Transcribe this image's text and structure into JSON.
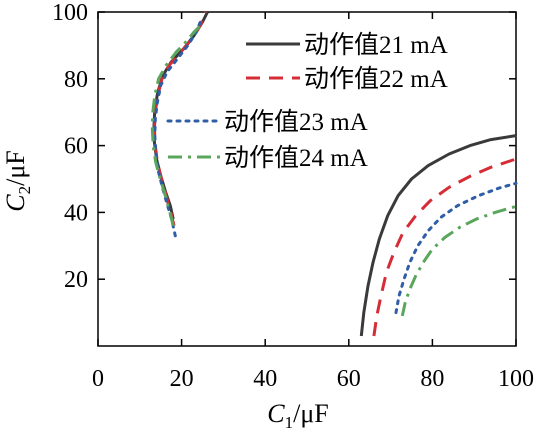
{
  "chart_data": {
    "type": "line",
    "title": "",
    "xlabel": "C1/μF",
    "ylabel": "C2/μF",
    "xlim": [
      0,
      100
    ],
    "ylim": [
      0,
      100
    ],
    "xticks": [
      0,
      20,
      40,
      60,
      80,
      100
    ],
    "yticks": [
      20,
      40,
      60,
      80,
      100
    ],
    "grid": false,
    "legend_position": "top-right",
    "series": [
      {
        "name": "动作值21 mA",
        "color": "#3a3a3a",
        "dash": "solid",
        "segments": [
          [
            [
              18.0,
              38
            ],
            [
              17.3,
              42
            ],
            [
              16.2,
              46
            ],
            [
              15.0,
              51
            ],
            [
              14.0,
              56
            ],
            [
              13.5,
              61
            ],
            [
              13.4,
              66
            ],
            [
              13.6,
              71
            ],
            [
              14.3,
              76
            ],
            [
              15.5,
              81
            ],
            [
              17.5,
              85
            ],
            [
              20.5,
              89
            ],
            [
              23.0,
              93
            ],
            [
              25.0,
              97
            ],
            [
              26.2,
              100
            ]
          ],
          [
            [
              63.0,
              3
            ],
            [
              63.6,
              10
            ],
            [
              64.6,
              18
            ],
            [
              65.8,
              25
            ],
            [
              67.3,
              32
            ],
            [
              69.3,
              39
            ],
            [
              71.8,
              45
            ],
            [
              75.0,
              50
            ],
            [
              79.0,
              54
            ],
            [
              84.0,
              57.5
            ],
            [
              89.0,
              60
            ],
            [
              94.0,
              61.8
            ],
            [
              100.0,
              63
            ]
          ]
        ]
      },
      {
        "name": "动作值22 mA",
        "color": "#d62c35",
        "dash": "dashed",
        "segments": [
          [
            [
              18.2,
              36
            ],
            [
              17.4,
              40
            ],
            [
              16.3,
              45
            ],
            [
              15.2,
              50
            ],
            [
              14.2,
              55
            ],
            [
              13.7,
              60
            ],
            [
              13.5,
              65
            ],
            [
              13.7,
              70
            ],
            [
              14.3,
              75
            ],
            [
              15.3,
              80
            ],
            [
              17.0,
              84
            ],
            [
              19.8,
              88
            ],
            [
              22.5,
              92
            ],
            [
              24.5,
              96
            ],
            [
              25.8,
              100
            ]
          ],
          [
            [
              66.0,
              3
            ],
            [
              66.7,
              9
            ],
            [
              67.7,
              15
            ],
            [
              69.0,
              22
            ],
            [
              70.8,
              28
            ],
            [
              73.0,
              34
            ],
            [
              76.0,
              39
            ],
            [
              79.5,
              43.5
            ],
            [
              84.0,
              47.5
            ],
            [
              89.0,
              50.8
            ],
            [
              94.0,
              53.5
            ],
            [
              100.0,
              56
            ]
          ]
        ]
      },
      {
        "name": "动作值23 mA",
        "color": "#2f5ea6",
        "dash": "dotted",
        "segments": [
          [
            [
              18.5,
              33
            ],
            [
              17.6,
              38
            ],
            [
              16.4,
              43
            ],
            [
              15.3,
              48
            ],
            [
              14.3,
              53
            ],
            [
              13.8,
              58
            ],
            [
              13.6,
              63
            ],
            [
              13.7,
              68
            ],
            [
              14.2,
              73
            ],
            [
              15.0,
              78
            ],
            [
              16.5,
              82
            ],
            [
              19.0,
              86
            ],
            [
              21.5,
              90
            ],
            [
              23.5,
              94
            ],
            [
              24.8,
              98
            ]
          ],
          [
            [
              71.3,
              10
            ],
            [
              72.0,
              15
            ],
            [
              73.2,
              20
            ],
            [
              74.6,
              25
            ],
            [
              76.5,
              30
            ],
            [
              79.0,
              34.5
            ],
            [
              82.0,
              38.5
            ],
            [
              86.0,
              42
            ],
            [
              91.0,
              45
            ],
            [
              96.0,
              47.3
            ],
            [
              100.0,
              48.7
            ]
          ]
        ]
      },
      {
        "name": "动作值24 mA",
        "color": "#5ba65d",
        "dash": "dashdot",
        "segments": [
          [
            [
              18.0,
              36
            ],
            [
              17.2,
              40
            ],
            [
              16.1,
              45
            ],
            [
              14.9,
              50
            ],
            [
              13.8,
              55
            ],
            [
              13.2,
              60
            ],
            [
              13.0,
              65
            ],
            [
              13.1,
              70
            ],
            [
              13.6,
              75
            ],
            [
              14.5,
              80
            ],
            [
              16.3,
              84
            ],
            [
              18.7,
              88
            ],
            [
              21.0,
              91
            ],
            [
              23.0,
              94
            ],
            [
              25.0,
              96.5
            ]
          ],
          [
            [
              72.8,
              9
            ],
            [
              73.5,
              13
            ],
            [
              74.6,
              17
            ],
            [
              76.0,
              21
            ],
            [
              77.8,
              25
            ],
            [
              80.0,
              29
            ],
            [
              83.0,
              32.5
            ],
            [
              86.5,
              35.5
            ],
            [
              90.5,
              38
            ],
            [
              95.0,
              40
            ],
            [
              100.0,
              41.8
            ]
          ]
        ]
      }
    ]
  }
}
